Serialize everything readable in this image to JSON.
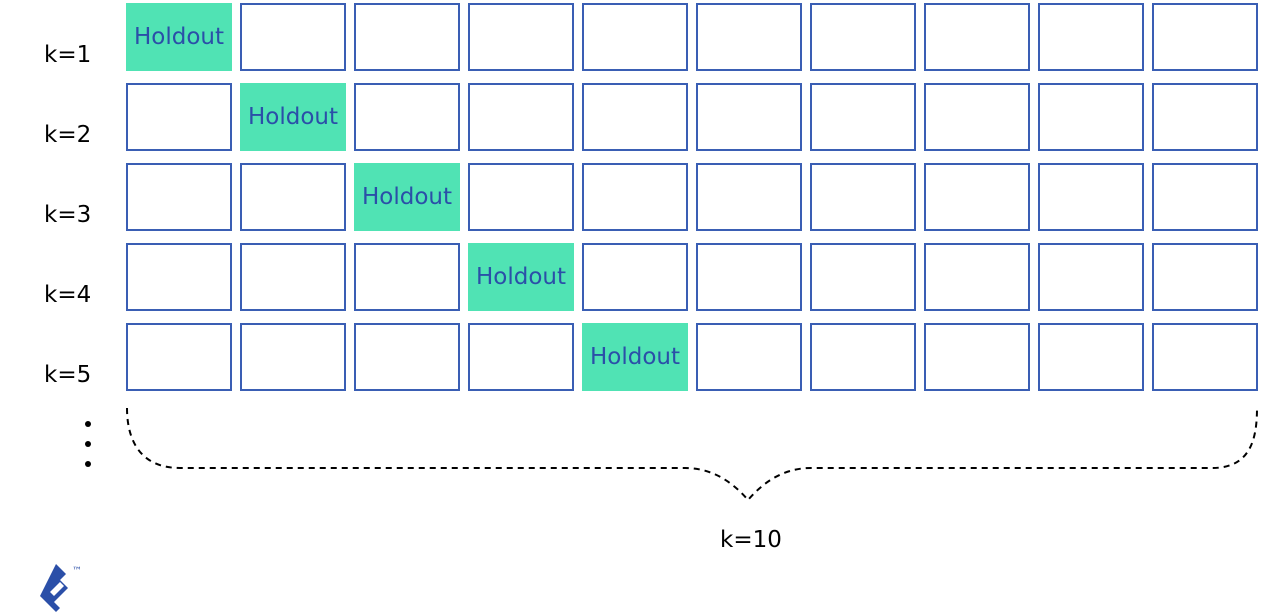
{
  "diagram": {
    "rows": [
      {
        "label": "k=1",
        "holdout_index": 0
      },
      {
        "label": "k=2",
        "holdout_index": 1
      },
      {
        "label": "k=3",
        "holdout_index": 2
      },
      {
        "label": "k=4",
        "holdout_index": 3
      },
      {
        "label": "k=5",
        "holdout_index": 4
      }
    ],
    "cells_per_row": 10,
    "holdout_label": "Holdout",
    "total_label": "k=10",
    "colors": {
      "holdout_fill": "#50e3b4",
      "cell_border": "#3a5eb4",
      "holdout_text": "#2b4fa8"
    }
  },
  "brand": {
    "logo_icon": "toptal-logo-icon",
    "trademark": "™"
  }
}
